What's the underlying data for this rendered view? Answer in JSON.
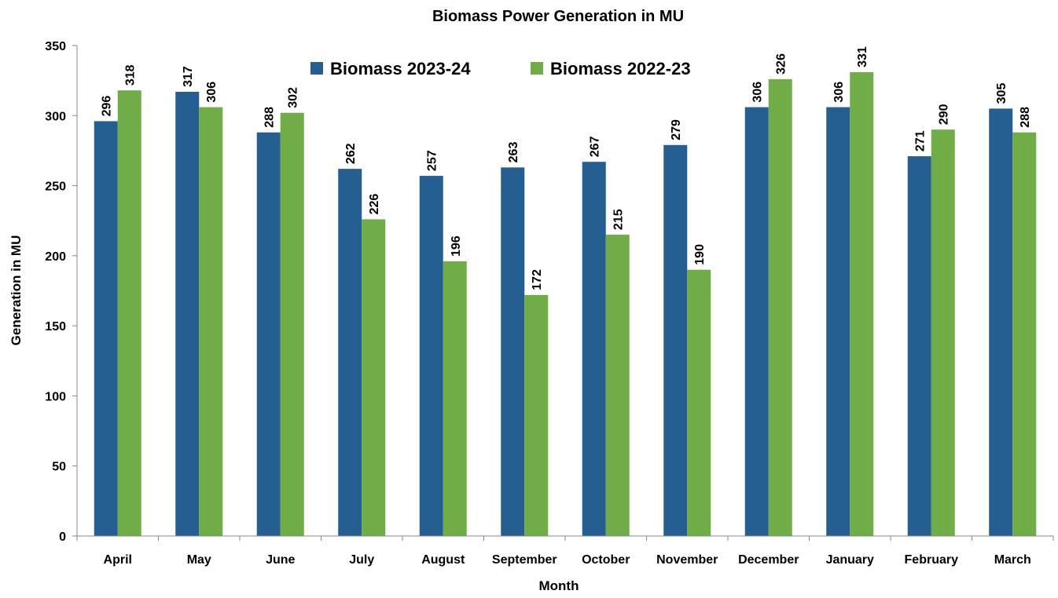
{
  "chart_data": {
    "type": "bar",
    "title": "Biomass Power  Generation in MU",
    "x_label": "Month",
    "y_label": "Generation in MU",
    "categories": [
      "April",
      "May",
      "June",
      "July",
      "August",
      "September",
      "October",
      "November",
      "December",
      "January",
      "February",
      "March"
    ],
    "series": [
      {
        "name": "Biomass 2023-24",
        "color": "#255e91",
        "values": [
          296,
          317,
          288,
          262,
          257,
          263,
          267,
          279,
          306,
          306,
          271,
          305
        ]
      },
      {
        "name": "Biomass 2022-23",
        "color": "#70ad47",
        "values": [
          318,
          306,
          302,
          226,
          196,
          172,
          215,
          190,
          326,
          331,
          290,
          288
        ]
      }
    ],
    "ylim": [
      0,
      350
    ],
    "yticks": [
      0,
      50,
      100,
      150,
      200,
      250,
      300,
      350
    ],
    "grid": false,
    "legend": "top"
  }
}
